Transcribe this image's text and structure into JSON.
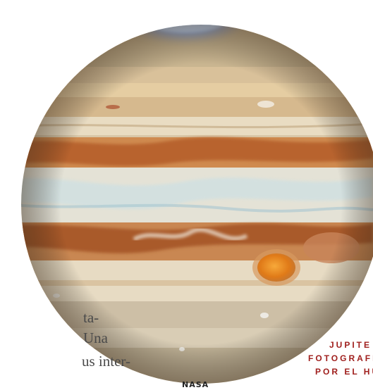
{
  "body_text": {
    "line1": "ta-",
    "line2": "Una",
    "line3": "us inter-"
  },
  "credit": "NASA",
  "caption": {
    "line1": "JUPITE",
    "line2": "FOTOGRAFI",
    "line3": "POR EL HU"
  },
  "colors": {
    "caption": "#a0201e",
    "aurora": "#7fb3ff",
    "great_red_spot": "#e8861e"
  }
}
